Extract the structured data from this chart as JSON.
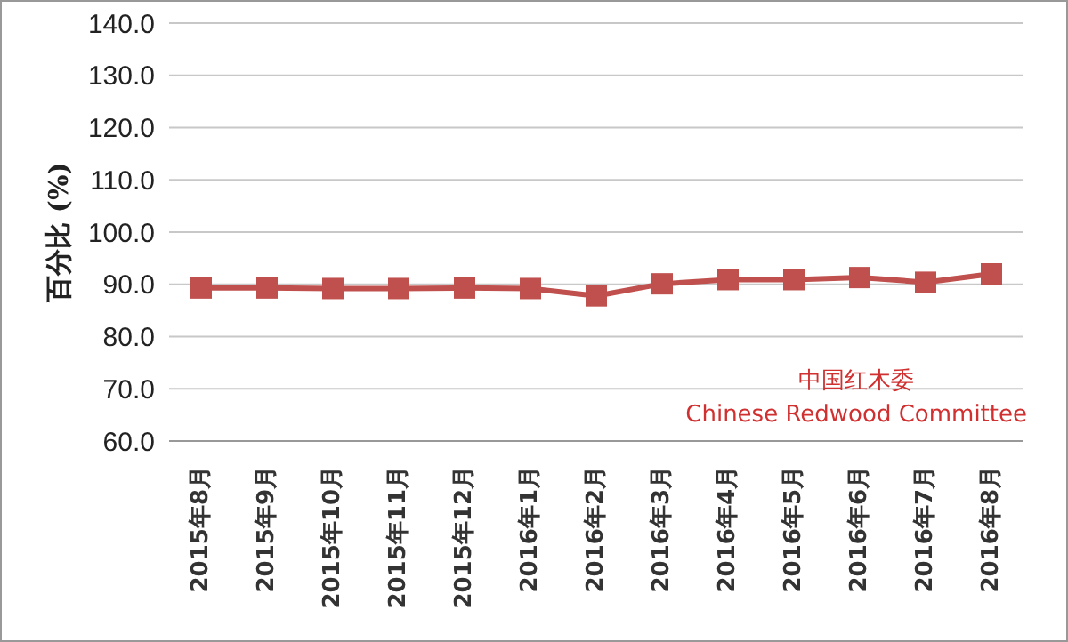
{
  "chart_data": {
    "type": "line",
    "ylabel": "百分比 (%)",
    "categories": [
      "2015年8月",
      "2015年9月",
      "2015年10月",
      "2015年11月",
      "2015年12月",
      "2016年1月",
      "2016年2月",
      "2016年3月",
      "2016年4月",
      "2016年5月",
      "2016年6月",
      "2016年7月",
      "2016年8月"
    ],
    "series": [
      {
        "color": "#c0504d",
        "values": [
          89.3,
          89.3,
          89.2,
          89.2,
          89.3,
          89.2,
          87.8,
          90.1,
          90.9,
          90.9,
          91.3,
          90.4,
          92.0
        ]
      }
    ],
    "ylim": [
      60,
      140
    ],
    "yticks": [
      {
        "value": 60,
        "label": "60.0"
      },
      {
        "value": 70,
        "label": "70.0"
      },
      {
        "value": 80,
        "label": "80.0"
      },
      {
        "value": 90,
        "label": "90.0"
      },
      {
        "value": 100,
        "label": "100.0"
      },
      {
        "value": 110,
        "label": "110.0"
      },
      {
        "value": 120,
        "label": "120.0"
      },
      {
        "value": 130,
        "label": "130.0"
      },
      {
        "value": 140,
        "label": "140.0"
      }
    ],
    "grid": "y",
    "legend": false,
    "marker": "square",
    "line_style": "solid",
    "annotations": [
      "中国红木委",
      "Chinese Redwood Committee"
    ]
  }
}
